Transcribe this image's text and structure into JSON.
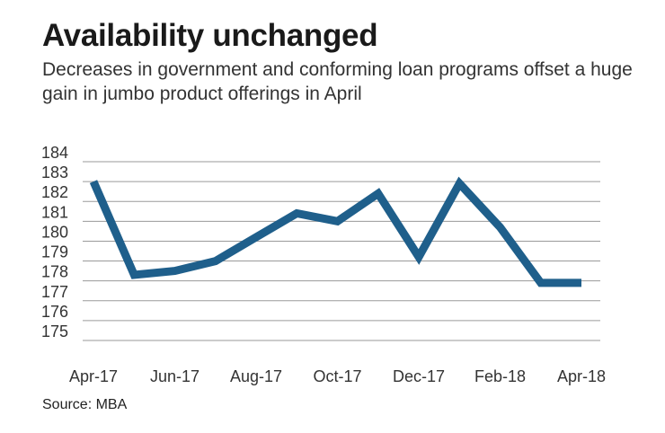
{
  "chart_data": {
    "type": "line",
    "title": "Availability unchanged",
    "subtitle": "Decreases in government and conforming loan programs offset a huge gain in jumbo product offerings in April",
    "source": "Source: MBA",
    "x": [
      "Apr-17",
      "May-17",
      "Jun-17",
      "Jul-17",
      "Aug-17",
      "Sep-17",
      "Oct-17",
      "Nov-17",
      "Dec-17",
      "Jan-18",
      "Feb-18",
      "Mar-18",
      "Apr-18"
    ],
    "x_tick_labels": [
      "Apr-17",
      "Jun-17",
      "Aug-17",
      "Oct-17",
      "Dec-17",
      "Feb-18",
      "Apr-18"
    ],
    "y_ticks": [
      184,
      183,
      182,
      181,
      180,
      179,
      178,
      177,
      176,
      175
    ],
    "ylim": [
      175,
      184
    ],
    "grid": true,
    "series": [
      {
        "values": [
          183.0,
          178.3,
          178.5,
          179.0,
          180.2,
          181.4,
          181.0,
          182.4,
          179.2,
          182.9,
          180.7,
          177.9,
          177.9
        ]
      }
    ],
    "colors": {
      "line": "#1f5f8b",
      "grid": "#9a9a9a"
    }
  }
}
